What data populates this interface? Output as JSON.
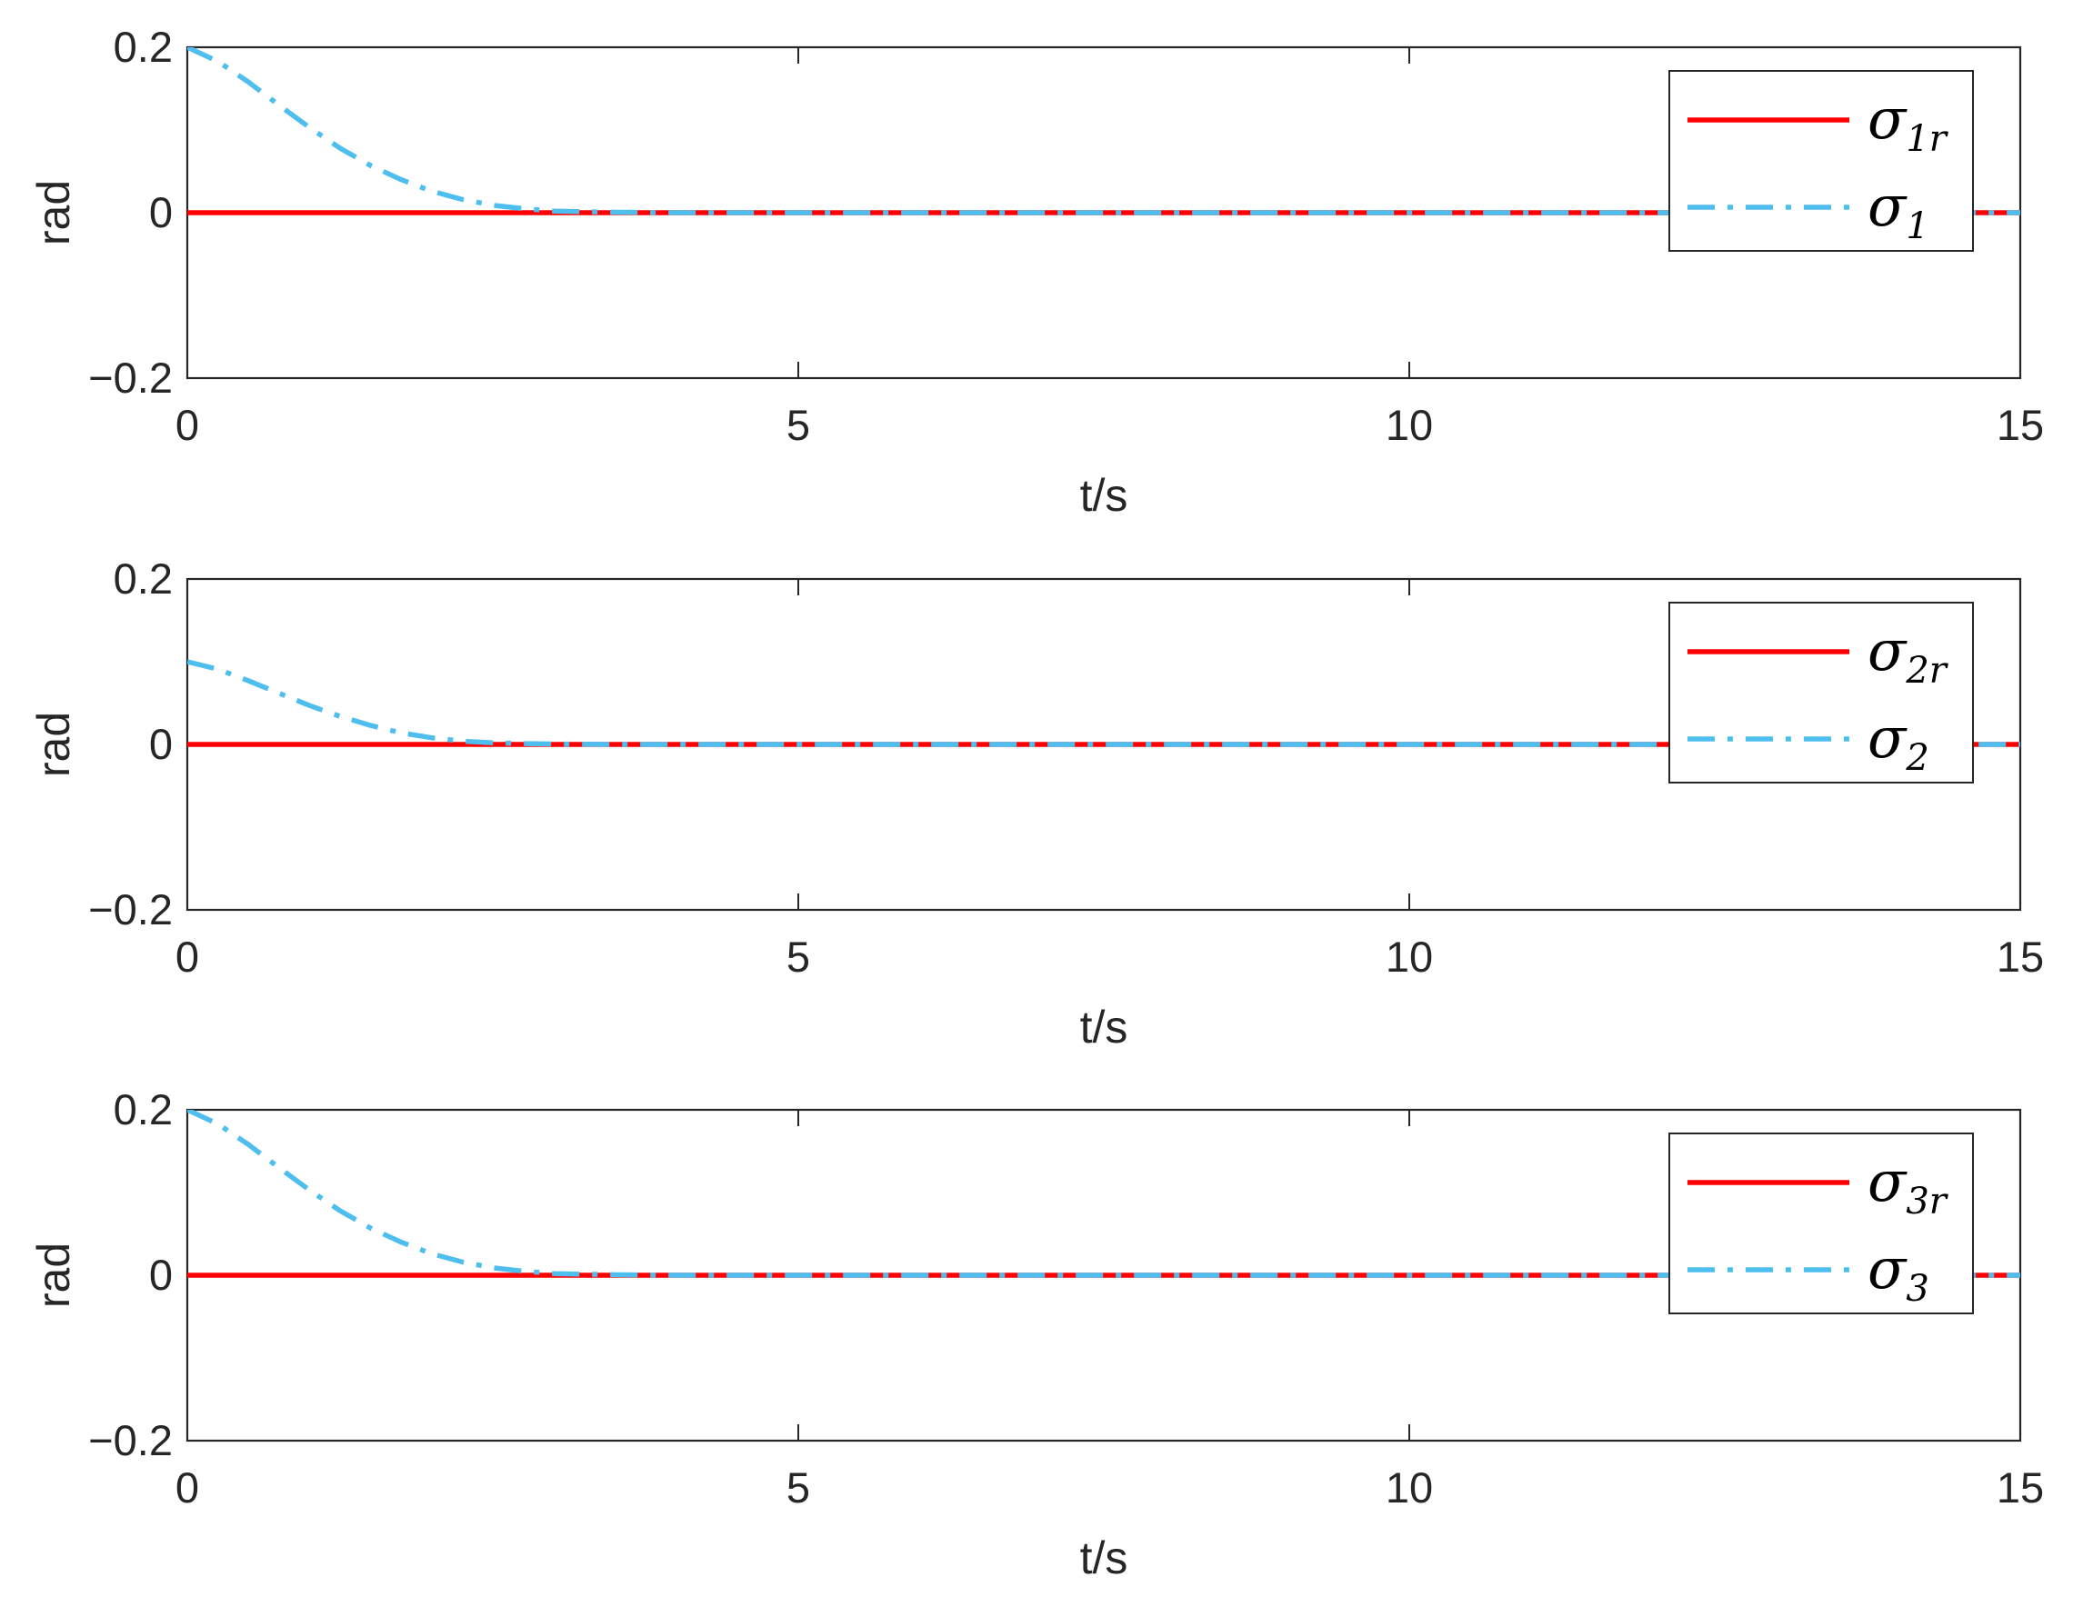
{
  "chart_data": [
    {
      "type": "line",
      "xlabel": "t/s",
      "ylabel": "rad",
      "xlim": [
        0,
        15
      ],
      "ylim": [
        -0.2,
        0.2
      ],
      "xticks": [
        "0",
        "5",
        "10",
        "15"
      ],
      "yticks": [
        "−0.2",
        "0",
        "0.2"
      ],
      "grid": false,
      "legend_position": "top-right",
      "series": [
        {
          "name": "σ_1r",
          "symbol": "σ",
          "subscript": "1",
          "subscript_italic": "r",
          "color": "#ff0000",
          "line_style": "solid",
          "x": [
            0,
            15
          ],
          "y": [
            0,
            0
          ]
        },
        {
          "name": "σ_1",
          "symbol": "σ",
          "subscript": "1",
          "subscript_italic": "",
          "color": "#4dbeee",
          "line_style": "dash-dot",
          "x": [
            0,
            0.25,
            0.5,
            0.75,
            1.0,
            1.25,
            1.5,
            1.75,
            2.0,
            2.25,
            2.5,
            2.75,
            3.0,
            3.5,
            4.0,
            5.0,
            15
          ],
          "y": [
            0.2,
            0.183,
            0.158,
            0.13,
            0.103,
            0.078,
            0.057,
            0.04,
            0.026,
            0.016,
            0.009,
            0.005,
            0.002,
            0.0005,
            0,
            0,
            0
          ]
        }
      ]
    },
    {
      "type": "line",
      "xlabel": "t/s",
      "ylabel": "rad",
      "xlim": [
        0,
        15
      ],
      "ylim": [
        -0.2,
        0.2
      ],
      "xticks": [
        "0",
        "5",
        "10",
        "15"
      ],
      "yticks": [
        "−0.2",
        "0",
        "0.2"
      ],
      "grid": false,
      "legend_position": "top-right",
      "series": [
        {
          "name": "σ_2r",
          "symbol": "σ",
          "subscript": "2",
          "subscript_italic": "r",
          "color": "#ff0000",
          "line_style": "solid",
          "x": [
            0,
            15
          ],
          "y": [
            0,
            0
          ]
        },
        {
          "name": "σ_2",
          "symbol": "σ",
          "subscript": "2",
          "subscript_italic": "",
          "color": "#4dbeee",
          "line_style": "dash-dot",
          "x": [
            0,
            0.25,
            0.5,
            0.75,
            1.0,
            1.25,
            1.5,
            1.75,
            2.0,
            2.25,
            2.5,
            2.75,
            3.0,
            3.5,
            4.0,
            5.0,
            15
          ],
          "y": [
            0.1,
            0.091,
            0.077,
            0.062,
            0.047,
            0.034,
            0.023,
            0.014,
            0.008,
            0.004,
            0.002,
            0.001,
            0.0005,
            0,
            0,
            0,
            0
          ]
        }
      ]
    },
    {
      "type": "line",
      "xlabel": "t/s",
      "ylabel": "rad",
      "xlim": [
        0,
        15
      ],
      "ylim": [
        -0.2,
        0.2
      ],
      "xticks": [
        "0",
        "5",
        "10",
        "15"
      ],
      "yticks": [
        "−0.2",
        "0",
        "0.2"
      ],
      "grid": false,
      "legend_position": "top-right",
      "series": [
        {
          "name": "σ_3r",
          "symbol": "σ",
          "subscript": "3",
          "subscript_italic": "r",
          "color": "#ff0000",
          "line_style": "solid",
          "x": [
            0,
            15
          ],
          "y": [
            0,
            0
          ]
        },
        {
          "name": "σ_3",
          "symbol": "σ",
          "subscript": "3",
          "subscript_italic": "",
          "color": "#4dbeee",
          "line_style": "dash-dot",
          "x": [
            0,
            0.25,
            0.5,
            0.75,
            1.0,
            1.25,
            1.5,
            1.75,
            2.0,
            2.25,
            2.5,
            2.75,
            3.0,
            3.5,
            4.0,
            5.0,
            15
          ],
          "y": [
            0.2,
            0.183,
            0.158,
            0.13,
            0.103,
            0.078,
            0.057,
            0.04,
            0.026,
            0.016,
            0.009,
            0.005,
            0.002,
            0.0005,
            0,
            0,
            0
          ]
        }
      ]
    }
  ]
}
